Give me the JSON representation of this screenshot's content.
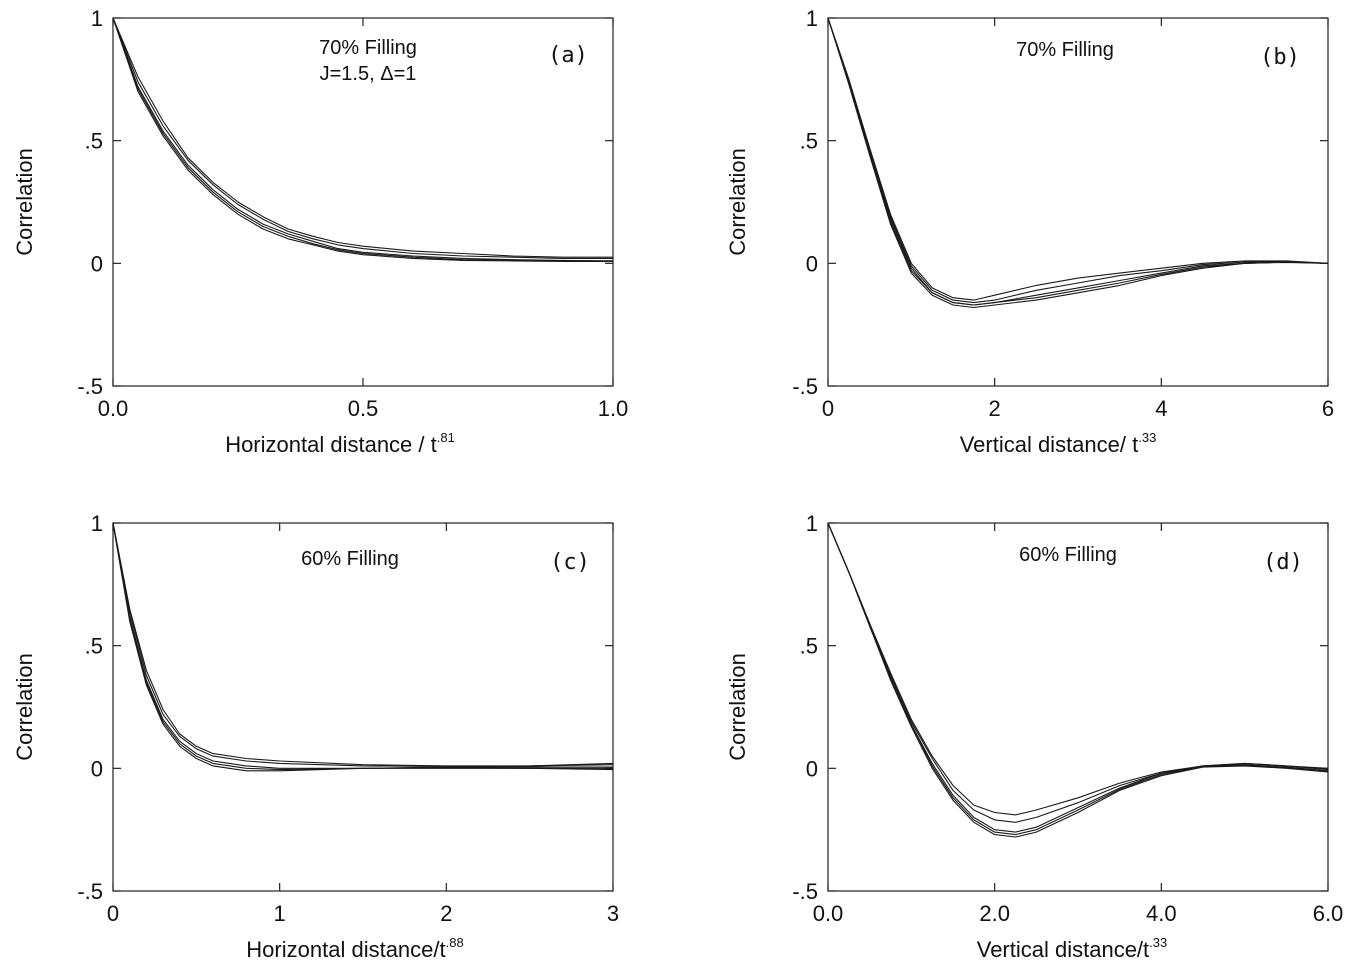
{
  "figure": {
    "panels": [
      {
        "id": "a",
        "tag": "(a)",
        "title": "70% Filling",
        "subtitle": "J=1.5, Δ=1",
        "xlabel": "Horizontal distance / t",
        "xlabel_exp": ".81",
        "ylabel": "Correlation"
      },
      {
        "id": "b",
        "tag": "(b)",
        "title": "70% Filling",
        "subtitle": "",
        "xlabel": "Vertical distance/ t",
        "xlabel_exp": ".33",
        "ylabel": "Correlation"
      },
      {
        "id": "c",
        "tag": "(c)",
        "title": "60% Filling",
        "subtitle": "",
        "xlabel": "Horizontal distance/t",
        "xlabel_exp": ".88",
        "ylabel": "Correlation"
      },
      {
        "id": "d",
        "tag": "(d)",
        "title": "60% Filling",
        "subtitle": "",
        "xlabel": "Vertical distance/t",
        "xlabel_exp": ".33",
        "ylabel": "Correlation"
      }
    ],
    "line_color": "#1a1a1a"
  },
  "chart_data": [
    {
      "type": "line",
      "title": "70% Filling",
      "annotation": "J=1.5, Δ=1",
      "panel_label": "(a)",
      "xlabel": "Horizontal distance / t^.81",
      "ylabel": "Correlation",
      "xlim": [
        0.0,
        1.0
      ],
      "ylim": [
        -0.5,
        1
      ],
      "xticks": [
        0.0,
        0.5,
        1.0
      ],
      "xtick_labels": [
        "0.0",
        "0.5",
        "1.0"
      ],
      "yticks": [
        -0.5,
        0,
        0.5,
        1
      ],
      "ytick_labels": [
        "-.5",
        "0",
        ".5",
        "1"
      ],
      "grid": false,
      "series": [
        {
          "x": [
            0,
            0.05,
            0.1,
            0.15,
            0.2,
            0.25,
            0.3,
            0.35,
            0.4,
            0.45,
            0.5,
            0.6,
            0.7,
            0.8,
            0.9,
            1.0
          ],
          "y": [
            1,
            0.72,
            0.54,
            0.4,
            0.3,
            0.22,
            0.16,
            0.12,
            0.09,
            0.06,
            0.045,
            0.03,
            0.02,
            0.015,
            0.012,
            0.01
          ]
        },
        {
          "x": [
            0,
            0.05,
            0.1,
            0.15,
            0.2,
            0.25,
            0.3,
            0.35,
            0.4,
            0.45,
            0.5,
            0.6,
            0.7,
            0.8,
            0.9,
            1.0
          ],
          "y": [
            1,
            0.74,
            0.56,
            0.42,
            0.32,
            0.24,
            0.18,
            0.13,
            0.1,
            0.075,
            0.06,
            0.04,
            0.03,
            0.025,
            0.02,
            0.02
          ]
        },
        {
          "x": [
            0,
            0.05,
            0.1,
            0.15,
            0.2,
            0.25,
            0.3,
            0.35,
            0.4,
            0.45,
            0.5,
            0.6,
            0.7,
            0.8,
            0.9,
            1.0
          ],
          "y": [
            1,
            0.7,
            0.52,
            0.38,
            0.28,
            0.2,
            0.14,
            0.1,
            0.075,
            0.05,
            0.035,
            0.02,
            0.012,
            0.01,
            0.008,
            0.008
          ]
        },
        {
          "x": [
            0,
            0.05,
            0.1,
            0.15,
            0.2,
            0.25,
            0.3,
            0.35,
            0.4,
            0.45,
            0.5,
            0.6,
            0.7,
            0.8,
            0.9,
            1.0
          ],
          "y": [
            1,
            0.76,
            0.58,
            0.43,
            0.33,
            0.25,
            0.19,
            0.14,
            0.11,
            0.085,
            0.07,
            0.05,
            0.04,
            0.03,
            0.025,
            0.025
          ]
        },
        {
          "x": [
            0,
            0.05,
            0.1,
            0.15,
            0.2,
            0.25,
            0.3,
            0.35,
            0.4,
            0.45,
            0.5,
            0.6,
            0.7,
            0.8,
            0.9,
            1.0
          ],
          "y": [
            1,
            0.71,
            0.53,
            0.39,
            0.29,
            0.21,
            0.15,
            0.11,
            0.08,
            0.055,
            0.04,
            0.025,
            0.015,
            0.012,
            0.01,
            0.01
          ]
        }
      ]
    },
    {
      "type": "line",
      "title": "70% Filling",
      "panel_label": "(b)",
      "xlabel": "Vertical distance/ t^.33",
      "ylabel": "Correlation",
      "xlim": [
        0,
        6
      ],
      "ylim": [
        -0.5,
        1
      ],
      "xticks": [
        0,
        2,
        4,
        6
      ],
      "xtick_labels": [
        "0",
        "2",
        "4",
        "6"
      ],
      "yticks": [
        -0.5,
        0,
        0.5,
        1
      ],
      "ytick_labels": [
        "-.5",
        "0",
        ".5",
        "1"
      ],
      "grid": false,
      "series": [
        {
          "x": [
            0,
            0.25,
            0.5,
            0.75,
            1.0,
            1.25,
            1.5,
            1.75,
            2.0,
            2.5,
            3.0,
            3.5,
            4.0,
            4.5,
            5.0,
            5.5,
            6.0
          ],
          "y": [
            1,
            0.74,
            0.45,
            0.18,
            -0.02,
            -0.12,
            -0.16,
            -0.17,
            -0.16,
            -0.13,
            -0.1,
            -0.07,
            -0.04,
            -0.01,
            0.0,
            0.005,
            0.0
          ]
        },
        {
          "x": [
            0,
            0.25,
            0.5,
            0.75,
            1.0,
            1.25,
            1.5,
            1.75,
            2.0,
            2.5,
            3.0,
            3.5,
            4.0,
            4.5,
            5.0,
            5.5,
            6.0
          ],
          "y": [
            1,
            0.75,
            0.47,
            0.2,
            0.0,
            -0.1,
            -0.14,
            -0.15,
            -0.13,
            -0.09,
            -0.06,
            -0.04,
            -0.02,
            0.0,
            0.01,
            0.01,
            0.0
          ]
        },
        {
          "x": [
            0,
            0.25,
            0.5,
            0.75,
            1.0,
            1.25,
            1.5,
            1.75,
            2.0,
            2.5,
            3.0,
            3.5,
            4.0,
            4.5,
            5.0,
            5.5,
            6.0
          ],
          "y": [
            1,
            0.73,
            0.44,
            0.16,
            -0.04,
            -0.13,
            -0.17,
            -0.18,
            -0.17,
            -0.15,
            -0.12,
            -0.09,
            -0.05,
            -0.02,
            0.0,
            0.005,
            0.0
          ]
        },
        {
          "x": [
            0,
            0.25,
            0.5,
            0.75,
            1.0,
            1.25,
            1.5,
            1.75,
            2.0,
            2.5,
            3.0,
            3.5,
            4.0,
            4.5,
            5.0,
            5.5,
            6.0
          ],
          "y": [
            1,
            0.75,
            0.46,
            0.19,
            -0.01,
            -0.11,
            -0.15,
            -0.16,
            -0.15,
            -0.11,
            -0.08,
            -0.05,
            -0.03,
            -0.005,
            0.005,
            0.008,
            0.0
          ]
        },
        {
          "x": [
            0,
            0.25,
            0.5,
            0.75,
            1.0,
            1.25,
            1.5,
            1.75,
            2.0,
            2.5,
            3.0,
            3.5,
            4.0,
            4.5,
            5.0,
            5.5,
            6.0
          ],
          "y": [
            1,
            0.74,
            0.45,
            0.17,
            -0.03,
            -0.12,
            -0.16,
            -0.17,
            -0.16,
            -0.14,
            -0.11,
            -0.08,
            -0.045,
            -0.015,
            0.0,
            0.004,
            0.0
          ]
        }
      ]
    },
    {
      "type": "line",
      "title": "60% Filling",
      "panel_label": "(c)",
      "xlabel": "Horizontal distance/t^.88",
      "ylabel": "Correlation",
      "xlim": [
        0,
        3
      ],
      "ylim": [
        -0.5,
        1
      ],
      "xticks": [
        0,
        1,
        2,
        3
      ],
      "xtick_labels": [
        "0",
        "1",
        "2",
        "3"
      ],
      "yticks": [
        -0.5,
        0,
        0.5,
        1
      ],
      "ytick_labels": [
        "-.5",
        "0",
        ".5",
        "1"
      ],
      "grid": false,
      "series": [
        {
          "x": [
            0,
            0.1,
            0.2,
            0.3,
            0.4,
            0.5,
            0.6,
            0.8,
            1.0,
            1.5,
            2.0,
            2.5,
            3.0
          ],
          "y": [
            1,
            0.62,
            0.36,
            0.2,
            0.11,
            0.06,
            0.03,
            0.01,
            0.0,
            0.0,
            0.005,
            0.005,
            0.005
          ]
        },
        {
          "x": [
            0,
            0.1,
            0.2,
            0.3,
            0.4,
            0.5,
            0.6,
            0.8,
            1.0,
            1.5,
            2.0,
            2.5,
            3.0
          ],
          "y": [
            1,
            0.65,
            0.4,
            0.24,
            0.14,
            0.09,
            0.06,
            0.04,
            0.03,
            0.015,
            0.01,
            0.01,
            0.015
          ]
        },
        {
          "x": [
            0,
            0.1,
            0.2,
            0.3,
            0.4,
            0.5,
            0.6,
            0.8,
            1.0,
            1.5,
            2.0,
            2.5,
            3.0
          ],
          "y": [
            1,
            0.6,
            0.34,
            0.18,
            0.09,
            0.04,
            0.01,
            -0.01,
            -0.01,
            0.0,
            0.0,
            0.0,
            0.0
          ]
        },
        {
          "x": [
            0,
            0.1,
            0.2,
            0.3,
            0.4,
            0.5,
            0.6,
            0.8,
            1.0,
            1.5,
            2.0,
            2.5,
            3.0
          ],
          "y": [
            1,
            0.64,
            0.38,
            0.22,
            0.13,
            0.08,
            0.05,
            0.03,
            0.02,
            0.01,
            0.008,
            0.01,
            0.02
          ]
        },
        {
          "x": [
            0,
            0.1,
            0.2,
            0.3,
            0.4,
            0.5,
            0.6,
            0.8,
            1.0,
            1.5,
            2.0,
            2.5,
            3.0
          ],
          "y": [
            1,
            0.61,
            0.35,
            0.19,
            0.1,
            0.05,
            0.02,
            0.0,
            -0.005,
            0.0,
            0.003,
            0.0,
            -0.005
          ]
        }
      ]
    },
    {
      "type": "line",
      "title": "60% Filling",
      "panel_label": "(d)",
      "xlabel": "Vertical distance/t^.33",
      "ylabel": "Correlation",
      "xlim": [
        0.0,
        6.0
      ],
      "ylim": [
        -0.5,
        1
      ],
      "xticks": [
        0.0,
        2.0,
        4.0,
        6.0
      ],
      "xtick_labels": [
        "0.0",
        "2.0",
        "4.0",
        "6.0"
      ],
      "yticks": [
        -0.5,
        0,
        0.5,
        1
      ],
      "ytick_labels": [
        "-.5",
        "0",
        ".5",
        "1"
      ],
      "grid": false,
      "series": [
        {
          "x": [
            0,
            0.25,
            0.5,
            0.75,
            1.0,
            1.25,
            1.5,
            1.75,
            2.0,
            2.25,
            2.5,
            3.0,
            3.5,
            4.0,
            4.5,
            5.0,
            5.5,
            6.0
          ],
          "y": [
            1,
            0.8,
            0.58,
            0.37,
            0.18,
            0.02,
            -0.11,
            -0.2,
            -0.25,
            -0.26,
            -0.24,
            -0.16,
            -0.08,
            -0.02,
            0.01,
            0.015,
            0.005,
            -0.01
          ]
        },
        {
          "x": [
            0,
            0.25,
            0.5,
            0.75,
            1.0,
            1.25,
            1.5,
            1.75,
            2.0,
            2.25,
            2.5,
            3.0,
            3.5,
            4.0,
            4.5,
            5.0,
            5.5,
            6.0
          ],
          "y": [
            1,
            0.8,
            0.59,
            0.39,
            0.2,
            0.05,
            -0.07,
            -0.15,
            -0.18,
            -0.19,
            -0.17,
            -0.12,
            -0.06,
            -0.015,
            0.01,
            0.02,
            0.01,
            0.0
          ]
        },
        {
          "x": [
            0,
            0.25,
            0.5,
            0.75,
            1.0,
            1.25,
            1.5,
            1.75,
            2.0,
            2.25,
            2.5,
            3.0,
            3.5,
            4.0,
            4.5,
            5.0,
            5.5,
            6.0
          ],
          "y": [
            1,
            0.8,
            0.58,
            0.36,
            0.17,
            0.0,
            -0.13,
            -0.22,
            -0.27,
            -0.28,
            -0.26,
            -0.18,
            -0.09,
            -0.03,
            0.005,
            0.01,
            0.0,
            -0.015
          ]
        },
        {
          "x": [
            0,
            0.25,
            0.5,
            0.75,
            1.0,
            1.25,
            1.5,
            1.75,
            2.0,
            2.25,
            2.5,
            3.0,
            3.5,
            4.0,
            4.5,
            5.0,
            5.5,
            6.0
          ],
          "y": [
            1,
            0.8,
            0.59,
            0.38,
            0.19,
            0.04,
            -0.09,
            -0.17,
            -0.21,
            -0.22,
            -0.2,
            -0.14,
            -0.07,
            -0.02,
            0.01,
            0.02,
            0.01,
            -0.005
          ]
        },
        {
          "x": [
            0,
            0.25,
            0.5,
            0.75,
            1.0,
            1.25,
            1.5,
            1.75,
            2.0,
            2.25,
            2.5,
            3.0,
            3.5,
            4.0,
            4.5,
            5.0,
            5.5,
            6.0
          ],
          "y": [
            1,
            0.8,
            0.58,
            0.37,
            0.18,
            0.01,
            -0.12,
            -0.21,
            -0.26,
            -0.27,
            -0.25,
            -0.17,
            -0.085,
            -0.025,
            0.008,
            0.012,
            0.002,
            -0.012
          ]
        }
      ]
    }
  ]
}
